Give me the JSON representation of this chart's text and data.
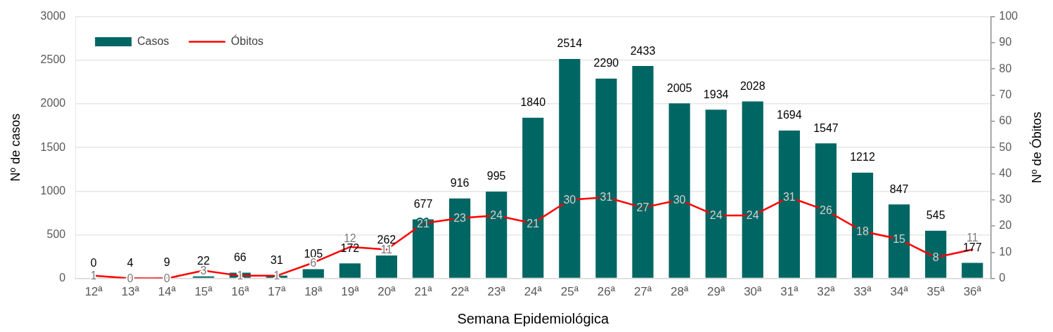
{
  "chart_data": {
    "type": "bar",
    "categories": [
      "12ª",
      "13ª",
      "14ª",
      "15ª",
      "16ª",
      "17ª",
      "18ª",
      "19ª",
      "20ª",
      "21ª",
      "22ª",
      "23ª",
      "24ª",
      "25ª",
      "26ª",
      "27ª",
      "28ª",
      "29ª",
      "30ª",
      "31ª",
      "32ª",
      "33ª",
      "34ª",
      "35ª",
      "36ª"
    ],
    "series": [
      {
        "name": "Casos",
        "color": "#006663",
        "values": [
          0,
          4,
          9,
          22,
          66,
          31,
          105,
          172,
          262,
          677,
          916,
          995,
          1840,
          2514,
          2290,
          2433,
          2005,
          1934,
          2028,
          1694,
          1547,
          1212,
          847,
          545,
          177
        ]
      },
      {
        "name": "Óbitos",
        "type": "line",
        "color": "#ff0000",
        "axis": "y2",
        "values": [
          1,
          0,
          0,
          3,
          1,
          1,
          6,
          12,
          11,
          21,
          23,
          24,
          21,
          30,
          31,
          27,
          30,
          24,
          24,
          31,
          26,
          18,
          15,
          8,
          11
        ]
      }
    ],
    "xlabel": "Semana Epidemiológica",
    "ylabel": "Nº de casos",
    "y2label": "Nº de Óbitos",
    "ylim": [
      0,
      3000
    ],
    "yticks": [
      0,
      500,
      1000,
      1500,
      2000,
      2500,
      3000
    ],
    "y2lim": [
      0,
      100
    ],
    "y2ticks": [
      0,
      10,
      20,
      30,
      40,
      50,
      60,
      70,
      80,
      90,
      100
    ],
    "data_labels": true,
    "grid": "y",
    "legend": "top left"
  }
}
